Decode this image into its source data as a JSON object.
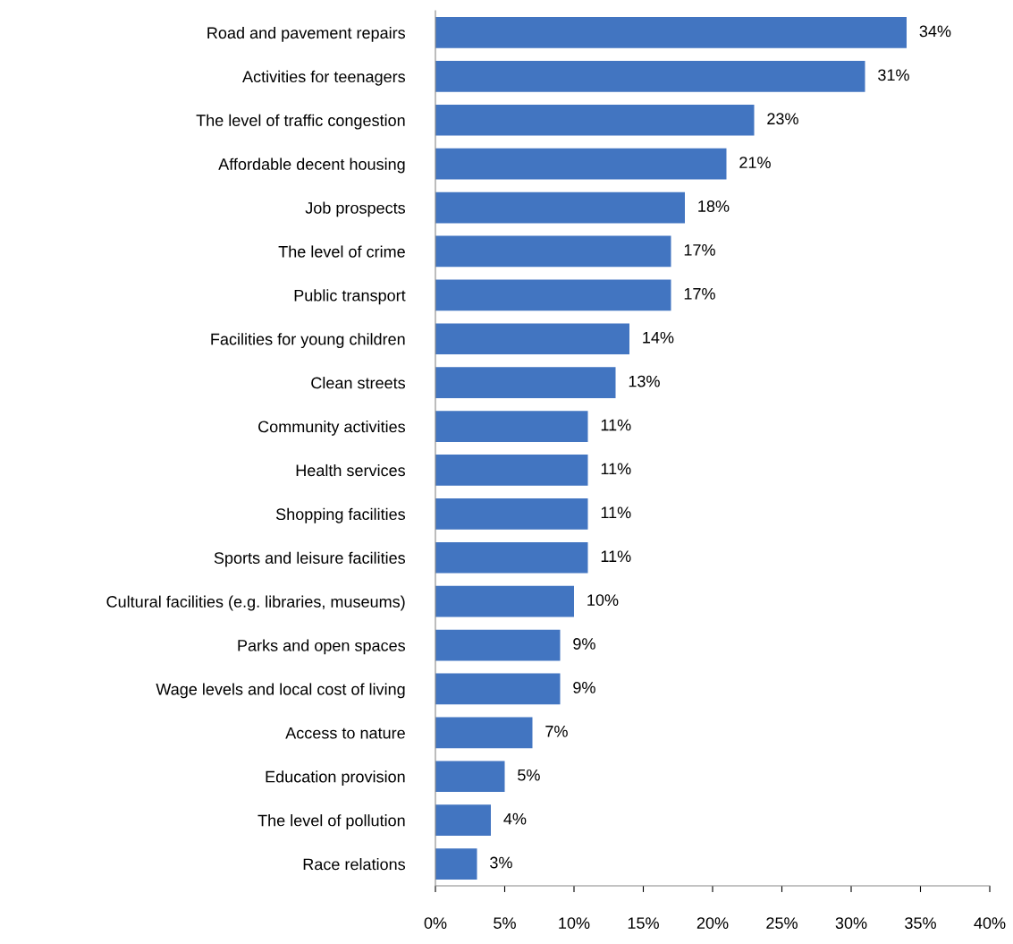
{
  "chart_data": {
    "type": "bar",
    "orientation": "horizontal",
    "categories": [
      "Road and pavement repairs",
      "Activities for teenagers",
      "The level of traffic congestion",
      "Affordable decent housing",
      "Job prospects",
      "The level of crime",
      "Public transport",
      "Facilities for young children",
      "Clean streets",
      "Community activities",
      "Health services",
      "Shopping facilities",
      "Sports and leisure facilities",
      "Cultural facilities (e.g. libraries, museums)",
      "Parks and open spaces",
      "Wage levels and local cost of living",
      "Access to nature",
      "Education provision",
      "The level of pollution",
      "Race relations"
    ],
    "values": [
      34,
      31,
      23,
      21,
      18,
      17,
      17,
      14,
      13,
      11,
      11,
      11,
      11,
      10,
      9,
      9,
      7,
      5,
      4,
      3
    ],
    "value_labels": [
      "34%",
      "31%",
      "23%",
      "21%",
      "18%",
      "17%",
      "17%",
      "14%",
      "13%",
      "11%",
      "11%",
      "11%",
      "11%",
      "10%",
      "9%",
      "9%",
      "7%",
      "5%",
      "4%",
      "3%"
    ],
    "color": "#4275c1",
    "xlim": [
      0,
      40
    ],
    "xticks": [
      {
        "value": 0,
        "label": "0%"
      },
      {
        "value": 5,
        "label": "5%"
      },
      {
        "value": 10,
        "label": "10%"
      },
      {
        "value": 15,
        "label": "15%"
      },
      {
        "value": 20,
        "label": "20%"
      },
      {
        "value": 25,
        "label": "25%"
      },
      {
        "value": 30,
        "label": "30%"
      },
      {
        "value": 35,
        "label": "35%"
      },
      {
        "value": 40,
        "label": "40%"
      }
    ],
    "grid": false,
    "legend": false
  }
}
